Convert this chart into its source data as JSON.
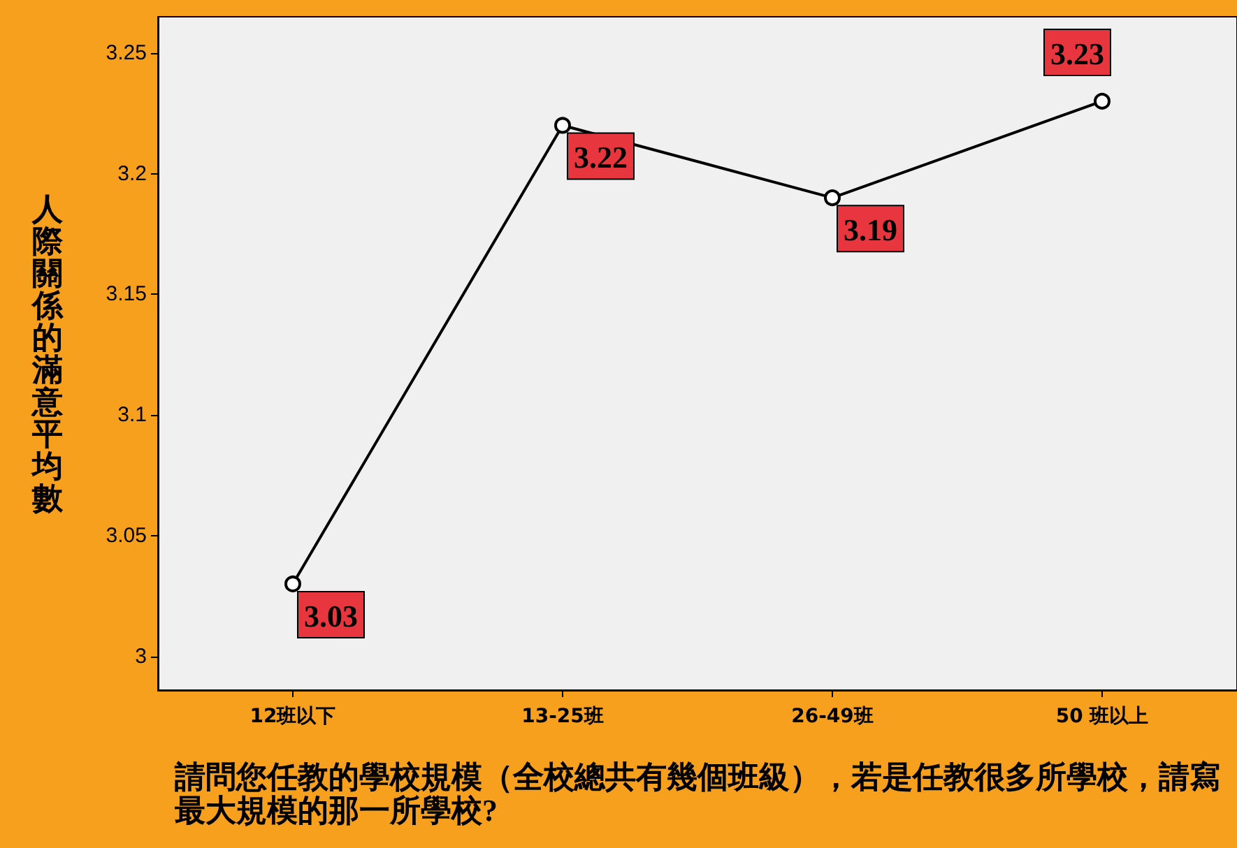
{
  "chart_data": {
    "type": "line",
    "xlabel": "請問您任教的學校規模（全校總共有幾個班級），若是任教很多所學校，請寫最大規模的那一所學校?",
    "ylabel": "人際關係的滿意平均數",
    "categories": [
      "12班以下",
      "13-25班",
      "26-49班",
      "50 班以上"
    ],
    "series": [
      {
        "color": "#000000",
        "values": [
          3.03,
          3.22,
          3.19,
          3.23
        ]
      }
    ],
    "ylim": [
      2.986,
      3.265
    ],
    "yticks": [
      3,
      3.05,
      3.1,
      3.15,
      3.2,
      3.25
    ],
    "data_labels": true,
    "marker": "circle",
    "grid": false
  }
}
